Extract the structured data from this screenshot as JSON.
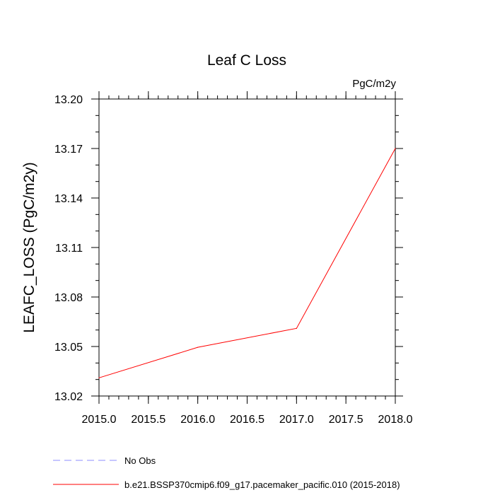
{
  "chart_data": {
    "type": "line",
    "title": "Leaf C Loss",
    "units_label": "PgC/m2y",
    "xlabel": "",
    "ylabel": "LEAFC_LOSS  (PgC/m2y)",
    "xlim": [
      2015.0,
      2018.0
    ],
    "ylim": [
      13.02,
      13.2
    ],
    "x_ticks": [
      "2015.0",
      "2015.5",
      "2016.0",
      "2016.5",
      "2017.0",
      "2017.5",
      "2018.0"
    ],
    "y_ticks": [
      "13.02",
      "13.05",
      "13.08",
      "13.11",
      "13.14",
      "13.17",
      "13.20"
    ],
    "grid": false,
    "legend_position": "bottom",
    "series": [
      {
        "name": "b.e21.BSSP370cmip6.f09_g17.pacemaker_pacific.010 (2015-2018)",
        "color": "#ff0000",
        "style": "solid",
        "x": [
          2015.0,
          2016.0,
          2017.0,
          2018.0
        ],
        "y": [
          13.031,
          13.0495,
          13.061,
          13.17
        ]
      }
    ],
    "legend": [
      {
        "label": "No Obs",
        "color": "#8c8cff",
        "style": "dashed"
      },
      {
        "label": "b.e21.BSSP370cmip6.f09_g17.pacemaker_pacific.010 (2015-2018)",
        "color": "#ff0000",
        "style": "solid"
      }
    ]
  }
}
